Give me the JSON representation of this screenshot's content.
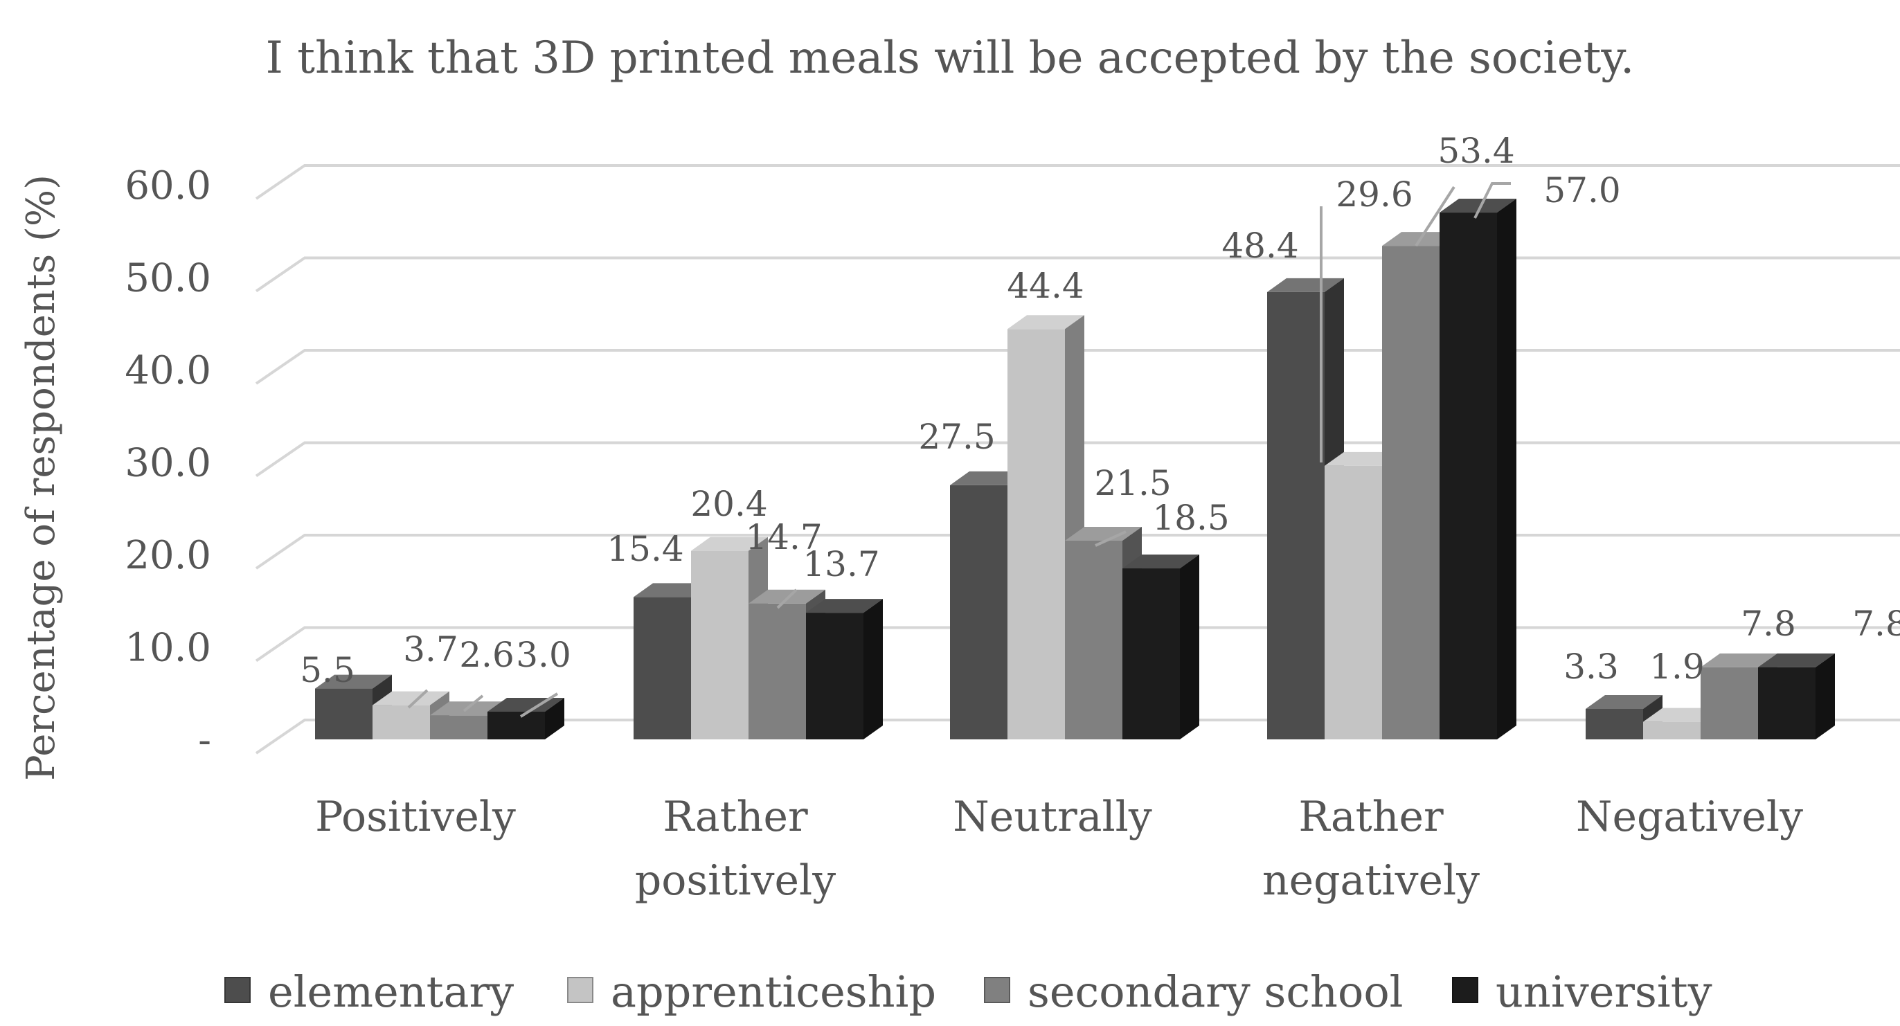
{
  "chart_data": {
    "type": "bar",
    "title": "I think that 3D printed meals will be accepted by the society.",
    "ylabel": "Percentage of respondents (%)",
    "xlabel": "",
    "ylim": [
      0,
      60
    ],
    "yticks": [
      0,
      10,
      20,
      30,
      40,
      50,
      60
    ],
    "ytick_labels": [
      "-",
      "10.0",
      "20.0",
      "30.0",
      "40.0",
      "50.0",
      "60.0"
    ],
    "categories": [
      [
        "Positively"
      ],
      [
        "Rather",
        "positively"
      ],
      [
        "Neutrally"
      ],
      [
        "Rather",
        "negatively"
      ],
      [
        "Negatively"
      ]
    ],
    "series": [
      {
        "name": "elementary",
        "color": "#4d4d4d",
        "values": [
          5.5,
          15.4,
          27.5,
          48.4,
          3.3
        ]
      },
      {
        "name": "apprenticeship",
        "color": "#c4c4c4",
        "values": [
          3.7,
          20.4,
          44.4,
          29.6,
          1.9
        ]
      },
      {
        "name": "secondary school",
        "color": "#808080",
        "values": [
          2.6,
          14.7,
          21.5,
          53.4,
          7.8
        ]
      },
      {
        "name": "university",
        "color": "#1c1c1c",
        "values": [
          3.0,
          13.7,
          18.5,
          57.0,
          7.8
        ]
      }
    ],
    "data_labels": [
      [
        "5.5",
        "3.7",
        "2.6",
        "3.0"
      ],
      [
        "15.4",
        "20.4",
        "14.7",
        "13.7"
      ],
      [
        "27.5",
        "44.4",
        "21.5",
        "18.5"
      ],
      [
        "48.4",
        "29.6",
        "53.4",
        "57.0"
      ],
      [
        "3.3",
        "1.9",
        "7.8",
        "7.8"
      ]
    ],
    "grid": true,
    "legend_position": "bottom",
    "style": "3d-clustered-column"
  }
}
